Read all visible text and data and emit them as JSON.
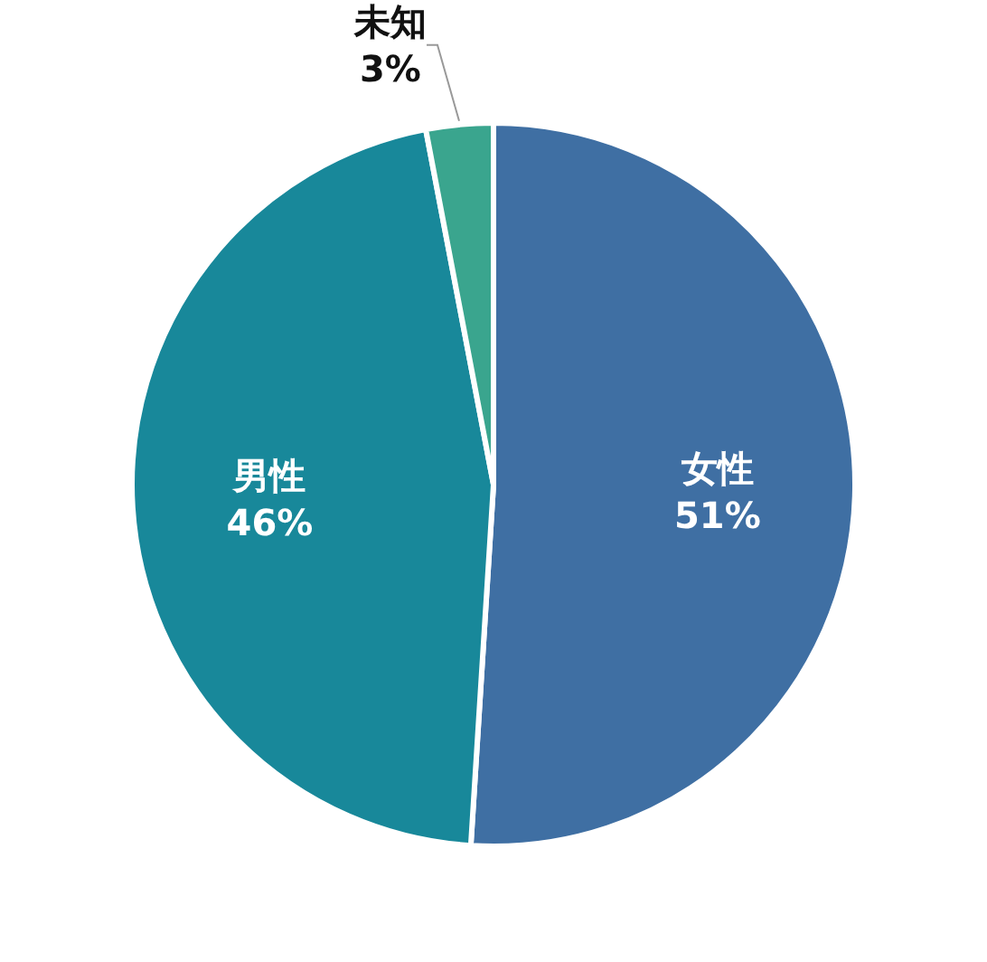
{
  "chart_data": {
    "type": "pie",
    "categories": [
      "女性",
      "男性",
      "未知"
    ],
    "values": [
      51,
      46,
      3
    ],
    "colors": [
      "#3f6fa3",
      "#18889a",
      "#3aa58e"
    ],
    "value_labels": [
      "51%",
      "46%",
      "3%"
    ]
  }
}
